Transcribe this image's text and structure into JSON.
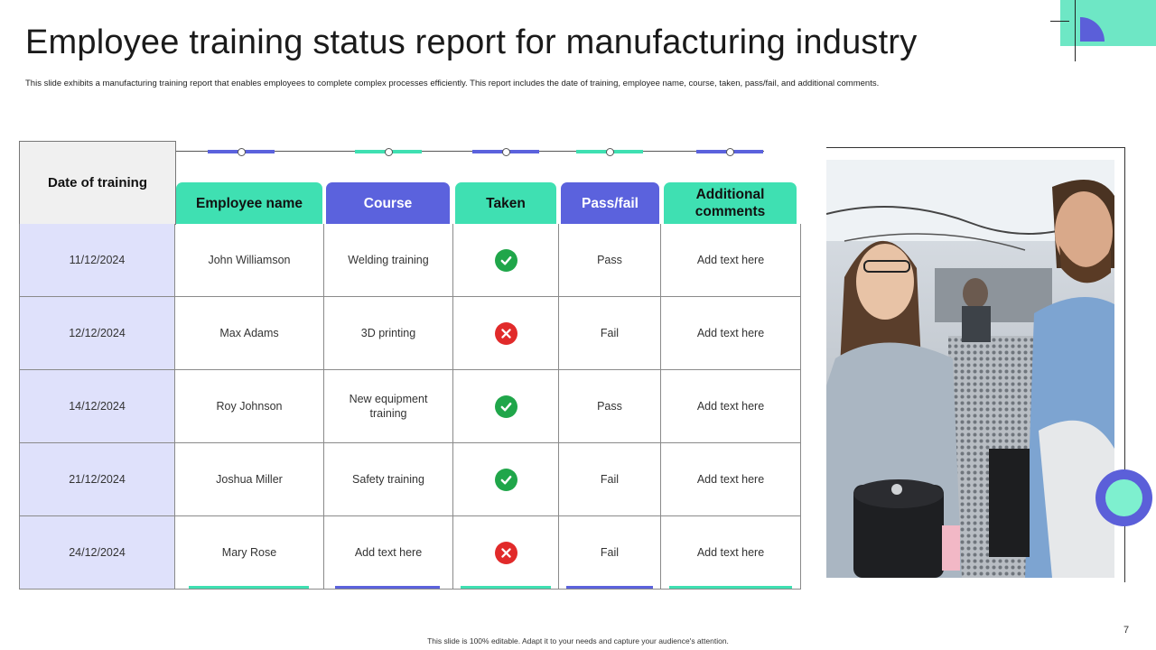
{
  "page": {
    "title": "Employee training status report for manufacturing industry",
    "subtitle": "This slide exhibits a manufacturing training report that enables employees to complete complex processes efficiently. This report includes the date of training,  employee name,  course,  taken, pass/fail, and additional comments.",
    "footer": "This slide is 100% editable. Adapt it to your needs and capture your audience's attention.",
    "page_number": "7"
  },
  "colors": {
    "mint": "#3fe0b2",
    "blue": "#5b62dd",
    "date_bg": "#dfe1fb",
    "pass_icon": "#20a64a",
    "fail_icon": "#e12a2a"
  },
  "table": {
    "date_header": "Date of training",
    "headers": {
      "employee": "Employee name",
      "course": "Course",
      "taken": "Taken",
      "result": "Pass/fail",
      "comments": "Additional comments"
    },
    "rows": [
      {
        "date": "11/12/2024",
        "employee": "John Williamson",
        "course": "Welding training",
        "taken_icon": "check-icon",
        "result": "Pass",
        "comments": "Add text here"
      },
      {
        "date": "12/12/2024",
        "employee": "Max Adams",
        "course": "3D printing",
        "taken_icon": "cross-icon",
        "result": "Fail",
        "comments": "Add text here"
      },
      {
        "date": "14/12/2024",
        "employee": "Roy Johnson",
        "course": "New equipment training",
        "taken_icon": "check-icon",
        "result": "Pass",
        "comments": "Add text here"
      },
      {
        "date": "21/12/2024",
        "employee": "Joshua Miller",
        "course": "Safety training",
        "taken_icon": "check-icon",
        "result": "Fail",
        "comments": "Add text here"
      },
      {
        "date": "24/12/2024",
        "employee": "Mary Rose",
        "course": "Add text here",
        "taken_icon": "cross-icon",
        "result": "Fail",
        "comments": "Add text here"
      }
    ]
  }
}
